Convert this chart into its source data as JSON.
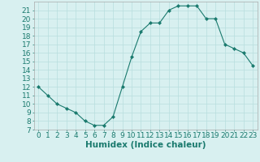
{
  "x": [
    0,
    1,
    2,
    3,
    4,
    5,
    6,
    7,
    8,
    9,
    10,
    11,
    12,
    13,
    14,
    15,
    16,
    17,
    18,
    19,
    20,
    21,
    22,
    23
  ],
  "y": [
    12,
    11,
    10,
    9.5,
    9,
    8,
    7.5,
    7.5,
    8.5,
    12,
    15.5,
    18.5,
    19.5,
    19.5,
    21,
    21.5,
    21.5,
    21.5,
    20,
    20,
    17,
    16.5,
    16,
    14.5
  ],
  "line_color": "#1a7a6e",
  "marker_color": "#1a7a6e",
  "bg_color": "#d8f0f0",
  "grid_color": "#b8dede",
  "xlabel": "Humidex (Indice chaleur)",
  "xlim": [
    -0.5,
    23.5
  ],
  "ylim": [
    7,
    22
  ],
  "yticks": [
    7,
    8,
    9,
    10,
    11,
    12,
    13,
    14,
    15,
    16,
    17,
    18,
    19,
    20,
    21
  ],
  "xticks": [
    0,
    1,
    2,
    3,
    4,
    5,
    6,
    7,
    8,
    9,
    10,
    11,
    12,
    13,
    14,
    15,
    16,
    17,
    18,
    19,
    20,
    21,
    22,
    23
  ],
  "tick_fontsize": 6.5,
  "label_fontsize": 7.5
}
